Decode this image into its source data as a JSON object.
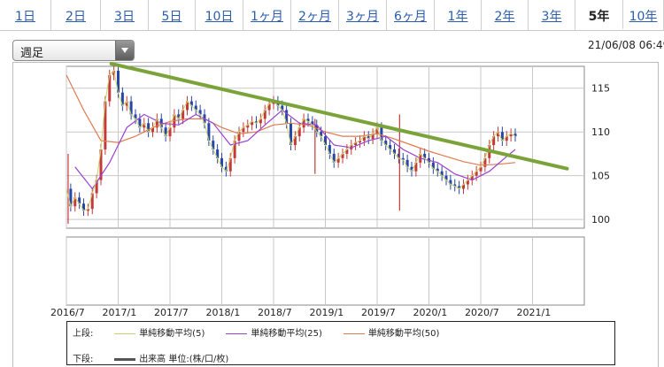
{
  "tabs": [
    {
      "label": "1日",
      "width": 58
    },
    {
      "label": "2日",
      "width": 56
    },
    {
      "label": "3日",
      "width": 54
    },
    {
      "label": "5日",
      "width": 53
    },
    {
      "label": "10日",
      "width": 54
    },
    {
      "label": "1ヶ月",
      "width": 54
    },
    {
      "label": "2ヶ月",
      "width": 54
    },
    {
      "label": "3ヶ月",
      "width": 54
    },
    {
      "label": "6ヶ月",
      "width": 54
    },
    {
      "label": "1年",
      "width": 53
    },
    {
      "label": "2年",
      "width": 53
    },
    {
      "label": "3年",
      "width": 53
    },
    {
      "label": "5年",
      "width": 54,
      "active": true
    },
    {
      "label": "10年",
      "width": 46
    }
  ],
  "period_select": {
    "value": "週足"
  },
  "timestamp": "21/06/08 06:49",
  "legend": {
    "upper_label": "上段:",
    "lower_label": "下段:",
    "items": [
      {
        "name": "単純移動平均(5)",
        "color": "#c9d26a"
      },
      {
        "name": "単純移動平均(25)",
        "color": "#9b3fd0"
      },
      {
        "name": "単純移動平均(50)",
        "color": "#e07a4f"
      }
    ],
    "volume_item": {
      "name": "出来高 単位:(株/口/枚)",
      "color": "#555555"
    }
  },
  "chart_data": {
    "type": "candlestick",
    "y_ticks": [
      100,
      105,
      110,
      115
    ],
    "ylim": [
      99,
      117.5
    ],
    "x_ticks": [
      "2016/7",
      "2017/1",
      "2017/7",
      "2018/1",
      "2018/7",
      "2019/1",
      "2019/7",
      "2020/1",
      "2020/7",
      "2021/1"
    ],
    "xlim_months": [
      0,
      60
    ],
    "grid": true,
    "colors": {
      "up": "#c43a3a",
      "down": "#2746a8",
      "trendline": "#7aa33a",
      "ma5": "#c9d26a",
      "ma25": "#9b3fd0",
      "ma50": "#e07a4f",
      "volume": "#555555"
    },
    "price_series": [
      {
        "t": 0,
        "v": 103.5
      },
      {
        "t": 0.5,
        "v": 101.5
      },
      {
        "t": 1,
        "v": 102.5
      },
      {
        "t": 1.5,
        "v": 101.8
      },
      {
        "t": 2,
        "v": 101.0
      },
      {
        "t": 2.5,
        "v": 101.2
      },
      {
        "t": 3,
        "v": 103.0
      },
      {
        "t": 3.5,
        "v": 104.5
      },
      {
        "t": 4,
        "v": 108.0
      },
      {
        "t": 4.5,
        "v": 113.5
      },
      {
        "t": 5,
        "v": 116.5
      },
      {
        "t": 5.5,
        "v": 117.0
      },
      {
        "t": 6,
        "v": 114.5
      },
      {
        "t": 6.5,
        "v": 113.0
      },
      {
        "t": 7,
        "v": 113.5
      },
      {
        "t": 7.5,
        "v": 112.0
      },
      {
        "t": 8,
        "v": 111.5
      },
      {
        "t": 8.5,
        "v": 110.5
      },
      {
        "t": 9,
        "v": 111.0
      },
      {
        "t": 9.5,
        "v": 110.0
      },
      {
        "t": 10,
        "v": 110.5
      },
      {
        "t": 10.5,
        "v": 111.5
      },
      {
        "t": 11,
        "v": 110.5
      },
      {
        "t": 11.5,
        "v": 109.5
      },
      {
        "t": 12,
        "v": 110.5
      },
      {
        "t": 12.5,
        "v": 112.0
      },
      {
        "t": 13,
        "v": 111.5
      },
      {
        "t": 13.5,
        "v": 112.5
      },
      {
        "t": 14,
        "v": 113.5
      },
      {
        "t": 14.5,
        "v": 113.0
      },
      {
        "t": 15,
        "v": 112.5
      },
      {
        "t": 15.5,
        "v": 112.0
      },
      {
        "t": 16,
        "v": 111.0
      },
      {
        "t": 16.5,
        "v": 109.0
      },
      {
        "t": 17,
        "v": 108.0
      },
      {
        "t": 17.5,
        "v": 107.0
      },
      {
        "t": 18,
        "v": 106.0
      },
      {
        "t": 18.5,
        "v": 105.5
      },
      {
        "t": 19,
        "v": 107.0
      },
      {
        "t": 19.5,
        "v": 109.0
      },
      {
        "t": 20,
        "v": 110.0
      },
      {
        "t": 20.5,
        "v": 110.5
      },
      {
        "t": 21,
        "v": 110.8
      },
      {
        "t": 21.5,
        "v": 111.2
      },
      {
        "t": 22,
        "v": 111.0
      },
      {
        "t": 22.5,
        "v": 111.5
      },
      {
        "t": 23,
        "v": 112.5
      },
      {
        "t": 23.5,
        "v": 113.2
      },
      {
        "t": 24,
        "v": 113.5
      },
      {
        "t": 24.5,
        "v": 113.0
      },
      {
        "t": 25,
        "v": 112.5
      },
      {
        "t": 25.5,
        "v": 111.0
      },
      {
        "t": 26,
        "v": 108.5
      },
      {
        "t": 26.5,
        "v": 109.5
      },
      {
        "t": 27,
        "v": 110.5
      },
      {
        "t": 27.5,
        "v": 111.5
      },
      {
        "t": 28,
        "v": 111.2
      },
      {
        "t": 28.5,
        "v": 110.8
      },
      {
        "t": 29,
        "v": 110.0
      },
      {
        "t": 29.5,
        "v": 109.5
      },
      {
        "t": 30,
        "v": 108.5
      },
      {
        "t": 30.5,
        "v": 107.5
      },
      {
        "t": 31,
        "v": 106.5
      },
      {
        "t": 31.5,
        "v": 107.0
      },
      {
        "t": 32,
        "v": 107.5
      },
      {
        "t": 32.5,
        "v": 108.0
      },
      {
        "t": 33,
        "v": 108.5
      },
      {
        "t": 33.5,
        "v": 108.8
      },
      {
        "t": 34,
        "v": 109.0
      },
      {
        "t": 34.5,
        "v": 109.5
      },
      {
        "t": 35,
        "v": 109.2
      },
      {
        "t": 35.5,
        "v": 109.8
      },
      {
        "t": 36,
        "v": 110.5
      },
      {
        "t": 36.5,
        "v": 109.0
      },
      {
        "t": 37,
        "v": 108.5
      },
      {
        "t": 37.5,
        "v": 108.0
      },
      {
        "t": 38,
        "v": 107.5
      },
      {
        "t": 38.5,
        "v": 107.0
      },
      {
        "t": 39,
        "v": 106.8
      },
      {
        "t": 39.5,
        "v": 106.0
      },
      {
        "t": 40,
        "v": 105.5
      },
      {
        "t": 40.5,
        "v": 106.5
      },
      {
        "t": 41,
        "v": 107.5
      },
      {
        "t": 41.5,
        "v": 107.0
      },
      {
        "t": 42,
        "v": 106.5
      },
      {
        "t": 42.5,
        "v": 105.8
      },
      {
        "t": 43,
        "v": 105.5
      },
      {
        "t": 43.5,
        "v": 105.0
      },
      {
        "t": 44,
        "v": 104.5
      },
      {
        "t": 44.5,
        "v": 104.0
      },
      {
        "t": 45,
        "v": 103.8
      },
      {
        "t": 45.5,
        "v": 103.5
      },
      {
        "t": 46,
        "v": 104.0
      },
      {
        "t": 46.5,
        "v": 104.5
      },
      {
        "t": 47,
        "v": 105.0
      },
      {
        "t": 47.5,
        "v": 105.5
      },
      {
        "t": 48,
        "v": 106.0
      },
      {
        "t": 48.5,
        "v": 107.0
      },
      {
        "t": 49,
        "v": 108.5
      },
      {
        "t": 49.5,
        "v": 109.5
      },
      {
        "t": 50,
        "v": 110.0
      },
      {
        "t": 50.5,
        "v": 109.0
      },
      {
        "t": 51,
        "v": 109.5
      },
      {
        "t": 51.5,
        "v": 109.8
      },
      {
        "t": 52,
        "v": 109.5
      }
    ],
    "ma25_series": [
      {
        "t": 1,
        "v": 106.0
      },
      {
        "t": 3,
        "v": 103.5
      },
      {
        "t": 5,
        "v": 106.5
      },
      {
        "t": 7,
        "v": 110.5
      },
      {
        "t": 9,
        "v": 112.0
      },
      {
        "t": 11,
        "v": 111.0
      },
      {
        "t": 13,
        "v": 110.8
      },
      {
        "t": 15,
        "v": 112.0
      },
      {
        "t": 17,
        "v": 111.0
      },
      {
        "t": 19,
        "v": 108.5
      },
      {
        "t": 21,
        "v": 109.0
      },
      {
        "t": 23,
        "v": 110.8
      },
      {
        "t": 25,
        "v": 112.5
      },
      {
        "t": 27,
        "v": 111.0
      },
      {
        "t": 29,
        "v": 110.8
      },
      {
        "t": 31,
        "v": 108.5
      },
      {
        "t": 33,
        "v": 108.2
      },
      {
        "t": 35,
        "v": 109.0
      },
      {
        "t": 37,
        "v": 109.5
      },
      {
        "t": 39,
        "v": 108.0
      },
      {
        "t": 41,
        "v": 107.0
      },
      {
        "t": 43,
        "v": 106.5
      },
      {
        "t": 45,
        "v": 105.2
      },
      {
        "t": 47,
        "v": 104.5
      },
      {
        "t": 49,
        "v": 105.5
      },
      {
        "t": 51,
        "v": 107.2
      },
      {
        "t": 52,
        "v": 108.0
      }
    ],
    "ma50_series": [
      {
        "t": 0,
        "v": 116.5
      },
      {
        "t": 2,
        "v": 112.5
      },
      {
        "t": 4,
        "v": 109.0
      },
      {
        "t": 6,
        "v": 108.8
      },
      {
        "t": 8,
        "v": 109.5
      },
      {
        "t": 10,
        "v": 110.5
      },
      {
        "t": 12,
        "v": 111.2
      },
      {
        "t": 14,
        "v": 111.5
      },
      {
        "t": 16,
        "v": 111.5
      },
      {
        "t": 18,
        "v": 110.5
      },
      {
        "t": 20,
        "v": 109.8
      },
      {
        "t": 22,
        "v": 110.0
      },
      {
        "t": 24,
        "v": 110.8
      },
      {
        "t": 26,
        "v": 111.0
      },
      {
        "t": 28,
        "v": 110.8
      },
      {
        "t": 30,
        "v": 110.0
      },
      {
        "t": 32,
        "v": 109.5
      },
      {
        "t": 34,
        "v": 109.5
      },
      {
        "t": 36,
        "v": 109.8
      },
      {
        "t": 38,
        "v": 109.2
      },
      {
        "t": 40,
        "v": 108.5
      },
      {
        "t": 42,
        "v": 107.8
      },
      {
        "t": 44,
        "v": 107.2
      },
      {
        "t": 46,
        "v": 106.6
      },
      {
        "t": 48,
        "v": 106.2
      },
      {
        "t": 50,
        "v": 106.3
      },
      {
        "t": 52,
        "v": 106.5
      }
    ],
    "trendline": {
      "t1": 5.2,
      "v1": 117.8,
      "t2": 58,
      "v2": 105.8
    },
    "spikes": [
      {
        "t": 0.2,
        "low": 99.5,
        "high": 107.5
      },
      {
        "t": 28.8,
        "low": 105.2,
        "high": 111.5
      },
      {
        "t": 38.6,
        "low": 101.0,
        "high": 112.0
      }
    ]
  }
}
